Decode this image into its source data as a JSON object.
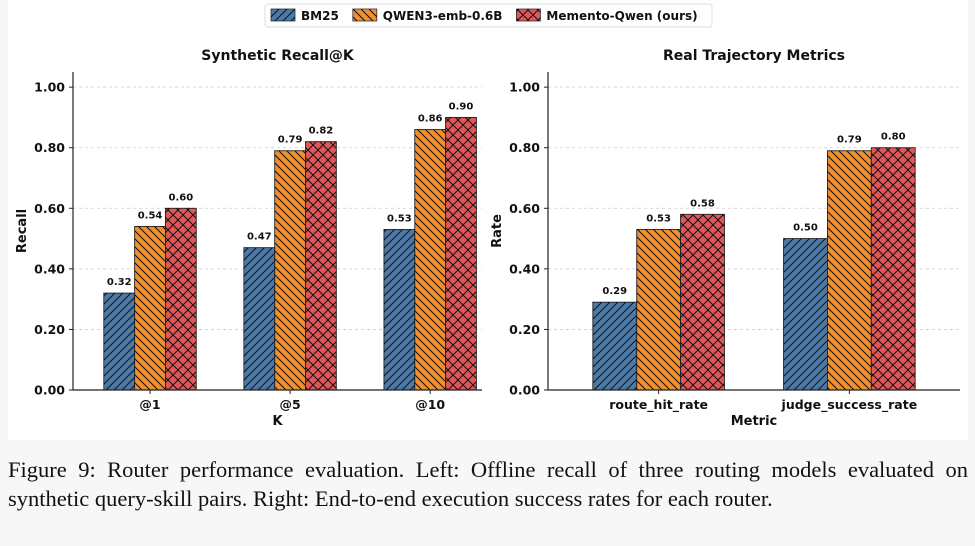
{
  "legend": {
    "placement": "top-center",
    "entries": [
      {
        "name": "BM25",
        "color": "#4e79a7",
        "hatch": "forward-diagonal"
      },
      {
        "name": "QWEN3-emb-0.6B",
        "color": "#f28e2b",
        "hatch": "back-diagonal"
      },
      {
        "name": "Memento-Qwen (ours)",
        "color": "#e15759",
        "hatch": "cross"
      }
    ]
  },
  "chart_data": [
    {
      "type": "bar",
      "title": "Synthetic Recall@K",
      "xlabel": "K",
      "ylabel": "Recall",
      "categories": [
        "@1",
        "@5",
        "@10"
      ],
      "ylim": [
        0,
        1.05
      ],
      "yticks": [
        "0.00",
        "0.20",
        "0.40",
        "0.60",
        "0.80",
        "1.00"
      ],
      "grid": true,
      "series": [
        {
          "name": "BM25",
          "values": [
            0.32,
            0.47,
            0.53
          ],
          "labels": [
            "0.32",
            "0.47",
            "0.53"
          ]
        },
        {
          "name": "QWEN3-emb-0.6B",
          "values": [
            0.54,
            0.79,
            0.86
          ],
          "labels": [
            "0.54",
            "0.79",
            "0.86"
          ]
        },
        {
          "name": "Memento-Qwen (ours)",
          "values": [
            0.6,
            0.82,
            0.9
          ],
          "labels": [
            "0.60",
            "0.82",
            "0.90"
          ]
        }
      ]
    },
    {
      "type": "bar",
      "title": "Real Trajectory Metrics",
      "xlabel": "Metric",
      "ylabel": "Rate",
      "categories": [
        "route_hit_rate",
        "judge_success_rate"
      ],
      "ylim": [
        0,
        1.05
      ],
      "yticks": [
        "0.00",
        "0.20",
        "0.40",
        "0.60",
        "0.80",
        "1.00"
      ],
      "grid": true,
      "series": [
        {
          "name": "BM25",
          "values": [
            0.29,
            0.5
          ],
          "labels": [
            "0.29",
            "0.50"
          ]
        },
        {
          "name": "QWEN3-emb-0.6B",
          "values": [
            0.53,
            0.79
          ],
          "labels": [
            "0.53",
            "0.79"
          ]
        },
        {
          "name": "Memento-Qwen (ours)",
          "values": [
            0.58,
            0.8
          ],
          "labels": [
            "0.58",
            "0.80"
          ]
        }
      ]
    }
  ],
  "caption": "Figure 9: Router performance evaluation. Left: Offline recall of three routing models evaluated on synthetic query-skill pairs. Right: End-to-end execution success rates for each router."
}
